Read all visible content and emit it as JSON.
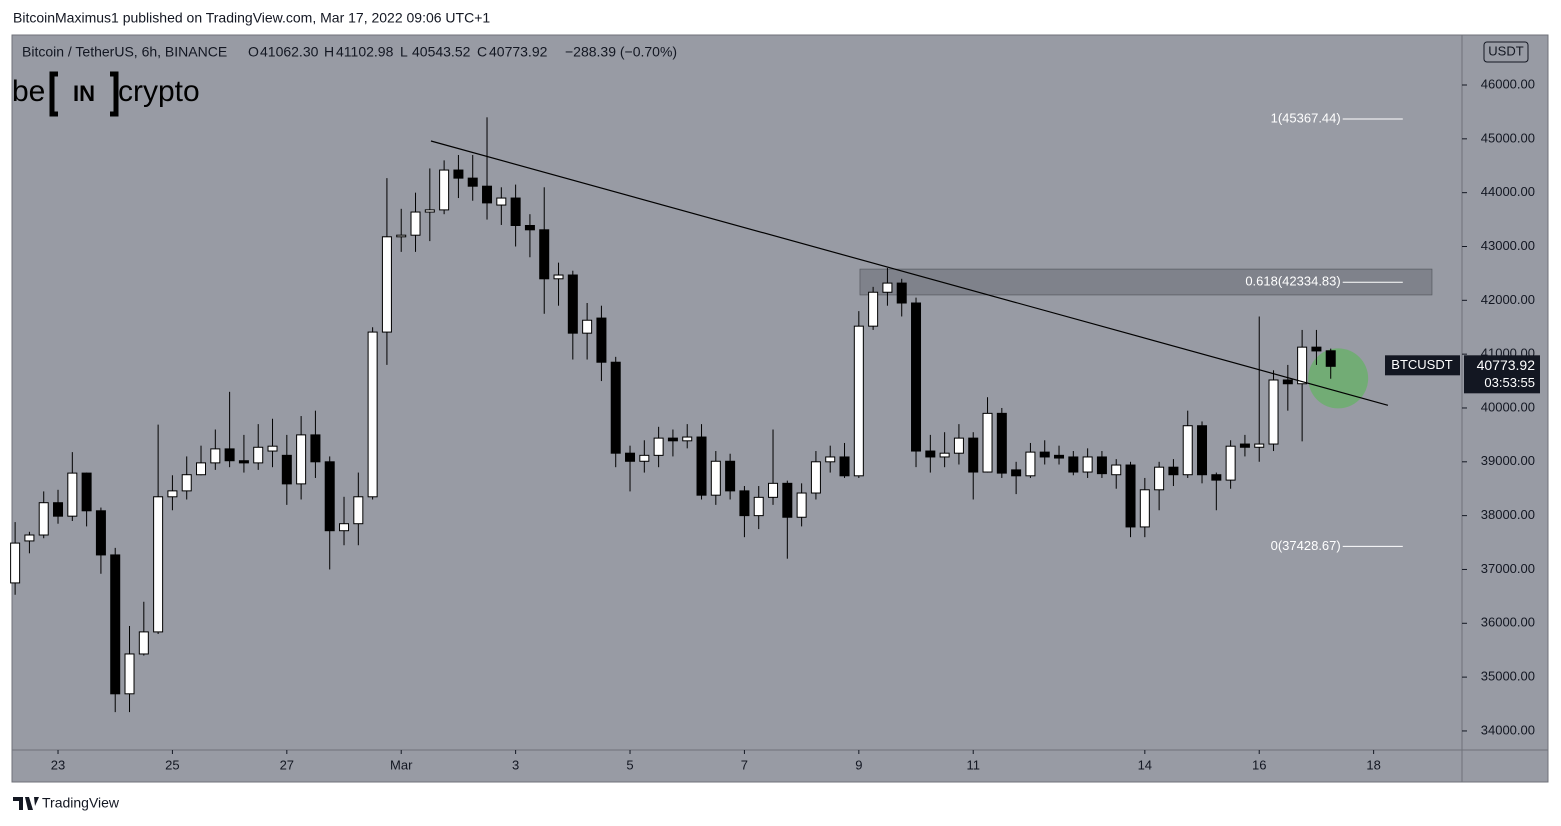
{
  "header": {
    "text": "BitcoinMaximus1 published on TradingView.com, Mar 17, 2022 09:06 UTC+1"
  },
  "chart_data": {
    "type": "candlestick",
    "symbol": "Bitcoin / TetherUS, 6h, BINANCE",
    "ohlc_legend": [
      {
        "key": "O",
        "value": "41062.30"
      },
      {
        "key": "H",
        "value": "41102.98"
      },
      {
        "key": "L",
        "value": "40543.52"
      },
      {
        "key": "C",
        "value": "40773.92"
      }
    ],
    "change": "−288.39 (−0.70%)",
    "watermark": [
      "be",
      "IN",
      "crypto"
    ],
    "currency": "USDT",
    "background": "#989ba4",
    "up_color": "#ffffff",
    "down_color": "#000000",
    "wick_color": "#000000",
    "x": [
      22.25,
      22.5,
      22.75,
      23,
      23.25,
      23.5,
      23.75,
      24,
      24.25,
      24.5,
      24.75,
      25,
      25.25,
      25.5,
      25.75,
      26,
      26.25,
      26.5,
      26.75,
      27,
      27.25,
      27.5,
      27.75,
      28,
      28.25,
      28.5,
      28.75,
      29,
      29.25,
      29.5,
      29.75,
      30,
      30.25,
      30.5,
      30.75,
      31,
      31.25,
      31.5,
      31.75,
      32,
      32.25,
      32.5,
      32.75,
      33,
      33.25,
      33.5,
      33.75,
      34,
      34.25,
      34.5,
      34.75,
      35,
      35.25,
      35.5,
      35.75,
      36,
      36.25,
      36.5,
      36.75,
      37,
      37.25,
      37.5,
      37.75,
      38,
      38.25,
      38.5,
      38.75,
      39,
      39.25,
      39.5,
      39.75,
      40,
      40.25,
      40.5,
      40.75,
      41,
      41.25,
      41.5,
      41.75,
      42,
      42.25,
      42.5,
      42.75,
      43,
      43.25,
      43.5,
      43.75,
      44,
      44.25,
      44.5,
      44.75,
      45,
      45.25
    ],
    "open": [
      36750,
      37530,
      37640,
      38240,
      37990,
      38790,
      38090,
      37270,
      34690,
      35430,
      35840,
      38350,
      38460,
      38760,
      38980,
      39240,
      39020,
      38980,
      39200,
      39120,
      38590,
      39500,
      39000,
      37720,
      37850,
      38350,
      41410,
      43180,
      43210,
      43640,
      43680,
      44420,
      44270,
      44120,
      43770,
      43900,
      43390,
      43310,
      42400,
      42470,
      41390,
      41670,
      40850,
      39160,
      39010,
      39120,
      39440,
      39390,
      39460,
      38380,
      39010,
      38460,
      38000,
      38340,
      38600,
      37970,
      38420,
      39000,
      39090,
      38740,
      41520,
      42150,
      42320,
      41950,
      39200,
      39090,
      39160,
      39440,
      38810,
      39900,
      38850,
      38740,
      39180,
      39120,
      39090,
      38810,
      39090,
      38760,
      38940,
      37790,
      38480,
      38900,
      38760,
      39670,
      38760,
      38660,
      39330,
      39270,
      39330,
      40520,
      40450,
      41130,
      41062.3
    ],
    "high": [
      37880,
      37700,
      38450,
      38480,
      39180,
      38800,
      38150,
      37400,
      35950,
      36400,
      39690,
      38750,
      39100,
      39300,
      39600,
      40300,
      39500,
      39700,
      39800,
      39500,
      39850,
      39950,
      39100,
      38350,
      38800,
      41500,
      44270,
      43700,
      44000,
      44450,
      44600,
      44700,
      44700,
      45400,
      44100,
      44150,
      43600,
      44100,
      42700,
      42550,
      41950,
      41900,
      40950,
      39300,
      39400,
      39650,
      39600,
      39700,
      39700,
      39200,
      39150,
      38550,
      38550,
      39600,
      38650,
      38600,
      39200,
      39300,
      39350,
      41800,
      42250,
      42600,
      42400,
      42050,
      39500,
      39550,
      39700,
      39550,
      40200,
      40000,
      39000,
      39350,
      39400,
      39300,
      39200,
      39250,
      39200,
      39050,
      39000,
      38700,
      39000,
      39050,
      39950,
      39750,
      38800,
      39400,
      39500,
      41700,
      40700,
      40800,
      41450,
      41450,
      41102.98
    ],
    "low": [
      36530,
      37300,
      37580,
      37850,
      37900,
      37800,
      36920,
      34350,
      34350,
      35400,
      35800,
      38100,
      38300,
      38750,
      38850,
      38900,
      38800,
      38850,
      38900,
      38200,
      38300,
      38700,
      37000,
      37450,
      37450,
      38300,
      40800,
      42900,
      42900,
      43100,
      43600,
      43900,
      43850,
      43500,
      43400,
      43000,
      42800,
      41750,
      41900,
      40900,
      40900,
      40500,
      38900,
      38450,
      38800,
      38900,
      39100,
      39250,
      38300,
      38200,
      38300,
      37600,
      37750,
      38200,
      37200,
      37800,
      38300,
      38800,
      38700,
      38700,
      41450,
      41900,
      41700,
      38900,
      38800,
      38900,
      38950,
      38300,
      38800,
      38700,
      38400,
      38700,
      38950,
      38950,
      38750,
      38700,
      38700,
      38500,
      37600,
      37600,
      38100,
      38550,
      38700,
      38600,
      38100,
      38500,
      39100,
      39000,
      39200,
      39950,
      39380,
      40800,
      40543.52
    ],
    "close": [
      37490,
      37640,
      38240,
      37990,
      38790,
      38090,
      37270,
      34690,
      35430,
      35840,
      38350,
      38460,
      38760,
      38980,
      39240,
      39020,
      38980,
      39270,
      39290,
      38590,
      39500,
      39000,
      37720,
      37850,
      38350,
      41410,
      43180,
      43210,
      43640,
      43680,
      44420,
      44270,
      44120,
      43810,
      43900,
      43390,
      43310,
      42400,
      42470,
      41390,
      41630,
      40850,
      39160,
      39010,
      39120,
      39440,
      39390,
      39460,
      38380,
      39010,
      38460,
      38000,
      38340,
      38600,
      37970,
      38420,
      39000,
      39090,
      38740,
      41520,
      42150,
      42320,
      41950,
      39200,
      39090,
      39160,
      39440,
      38810,
      39900,
      38790,
      38740,
      39180,
      39090,
      39070,
      38810,
      39090,
      38780,
      38940,
      37790,
      38480,
      38900,
      38760,
      39670,
      38760,
      38660,
      39290,
      39270,
      39330,
      40520,
      40450,
      41130,
      41060,
      40773.92
    ],
    "xlim": [
      22.213,
      47.545
    ],
    "ylim": [
      33646,
      46929
    ],
    "xticks": [
      23,
      25,
      27,
      {
        "value": 29,
        "label": "Mar"
      },
      {
        "value": 31,
        "label": "3"
      },
      {
        "value": 33,
        "label": "5"
      },
      {
        "value": 35,
        "label": "7"
      },
      {
        "value": 37,
        "label": "9"
      },
      {
        "value": 39,
        "label": "11"
      },
      {
        "value": 42,
        "label": "14"
      },
      {
        "value": 44,
        "label": "16"
      },
      {
        "value": 46,
        "label": "18"
      }
    ],
    "yticks": [
      {
        "value": 34000,
        "label": "34000.00"
      },
      {
        "value": 35000,
        "label": "35000.00"
      },
      {
        "value": 36000,
        "label": "36000.00"
      },
      {
        "value": 37000,
        "label": "37000.00"
      },
      {
        "value": 38000,
        "label": "38000.00"
      },
      {
        "value": 39000,
        "label": "39000.00"
      },
      {
        "value": 40000,
        "label": "40000.00"
      },
      {
        "value": 41000,
        "label": "41000.00"
      },
      {
        "value": 42000,
        "label": "42000.00"
      },
      {
        "value": 43000,
        "label": "43000.00"
      },
      {
        "value": 44000,
        "label": "44000.00"
      },
      {
        "value": 45000,
        "label": "45000.00"
      },
      {
        "value": 46000,
        "label": "46000.00"
      }
    ],
    "price_tag": {
      "name": "BTCUSDT",
      "countdown": "03:53:55"
    },
    "trendline": {
      "x": [
        29.52,
        46.25
      ],
      "y": [
        44960,
        40050
      ]
    },
    "zone": {
      "x": [
        37.02,
        47.02
      ],
      "y": [
        42100,
        42580
      ],
      "color": "#6b6e76"
    },
    "fib_levels": [
      {
        "value": 45367.44,
        "label": "1(45367.44)"
      },
      {
        "value": 42334.83,
        "label": "0.618(42334.83)"
      },
      {
        "value": 37428.67,
        "label": "0(37428.67)"
      }
    ],
    "fib_x": [
      45.46,
      46.51
    ],
    "highlight": {
      "x": 45.38,
      "y": 40550,
      "color": "#66b266"
    }
  },
  "footer": {
    "brand": "TradingView"
  }
}
